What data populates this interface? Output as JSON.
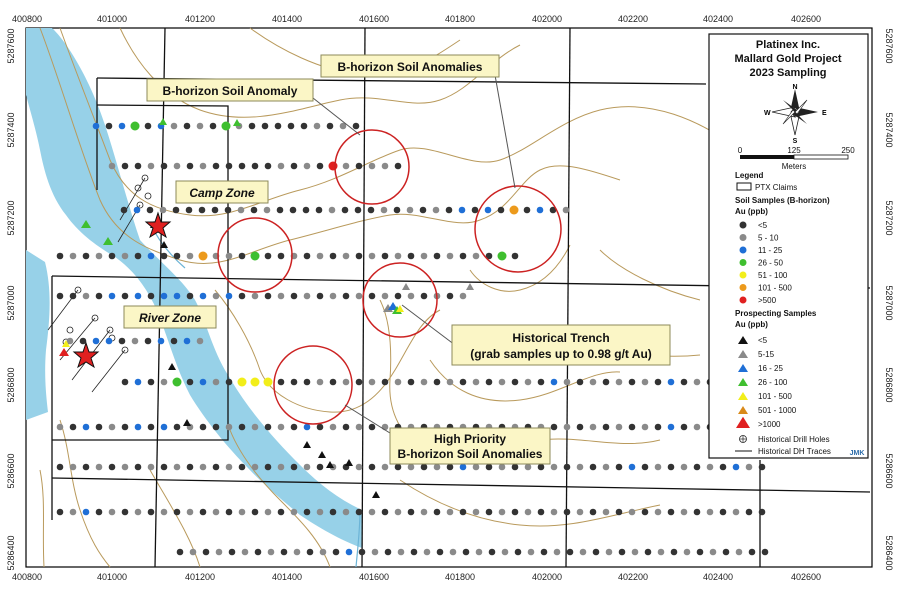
{
  "map": {
    "x_axis_labels": [
      "400800",
      "401000",
      "401200",
      "401400",
      "401600",
      "401800",
      "402000",
      "402200",
      "402400",
      "402600"
    ],
    "y_axis_labels": [
      "5287600",
      "5287400",
      "5287200",
      "5287000",
      "5286800",
      "5286600",
      "5286400"
    ],
    "callouts": {
      "soil_anomaly": "B-horizon Soil Anomaly",
      "soil_anomalies_top": "B-horizon Soil Anomalies",
      "trench_line1": "Historical Trench",
      "trench_line2": "(grab samples up to 0.98 g/t Au)",
      "high_priority_line1": "High Priority",
      "high_priority_line2": "B-horizon Soil Anomalies"
    },
    "zones": {
      "camp": "Camp Zone",
      "river": "River Zone"
    },
    "colors": {
      "water": "#97d1e8",
      "contour": "#b99a5c",
      "anomaly_circle": "#cc2222"
    }
  },
  "legend": {
    "title_line1": "Platinex Inc.",
    "title_line2": "Mallard Gold Project",
    "title_line3": "2023 Sampling",
    "north": "N",
    "south": "S",
    "east": "E",
    "west": "W",
    "scale_0": "0",
    "scale_125": "125",
    "scale_250": "250",
    "scale_unit": "Meters",
    "legend_label": "Legend",
    "claims": "PTX Claims",
    "soil_header": "Soil Samples (B-horizon)",
    "soil_unit": "Au (ppb)",
    "soil_items": [
      {
        "label": "<5",
        "color": "#333333"
      },
      {
        "label": "5 - 10",
        "color": "#8a8a8a"
      },
      {
        "label": "11 - 25",
        "color": "#1f6fd6"
      },
      {
        "label": "26 - 50",
        "color": "#3fbf2f"
      },
      {
        "label": "51 - 100",
        "color": "#f2ee1a"
      },
      {
        "label": "101 - 500",
        "color": "#ec9a1c"
      },
      {
        "label": ">500",
        "color": "#e02020"
      }
    ],
    "prosp_header": "Prospecting Samples",
    "prosp_unit": "Au (ppb)",
    "prosp_items": [
      {
        "label": "<5",
        "color": "#111111"
      },
      {
        "label": "5-15",
        "color": "#8a8a8a"
      },
      {
        "label": "16 - 25",
        "color": "#1f6fd6"
      },
      {
        "label": "26 - 100",
        "color": "#3fbf2f"
      },
      {
        "label": "101 - 500",
        "color": "#f2ee1a"
      },
      {
        "label": "501 - 1000",
        "color": "#d98a1a"
      },
      {
        "label": ">1000",
        "color": "#e02020"
      }
    ],
    "drill_holes": "Historical Drill Holes",
    "dh_traces": "Historical DH Traces",
    "logo": "JMK"
  }
}
